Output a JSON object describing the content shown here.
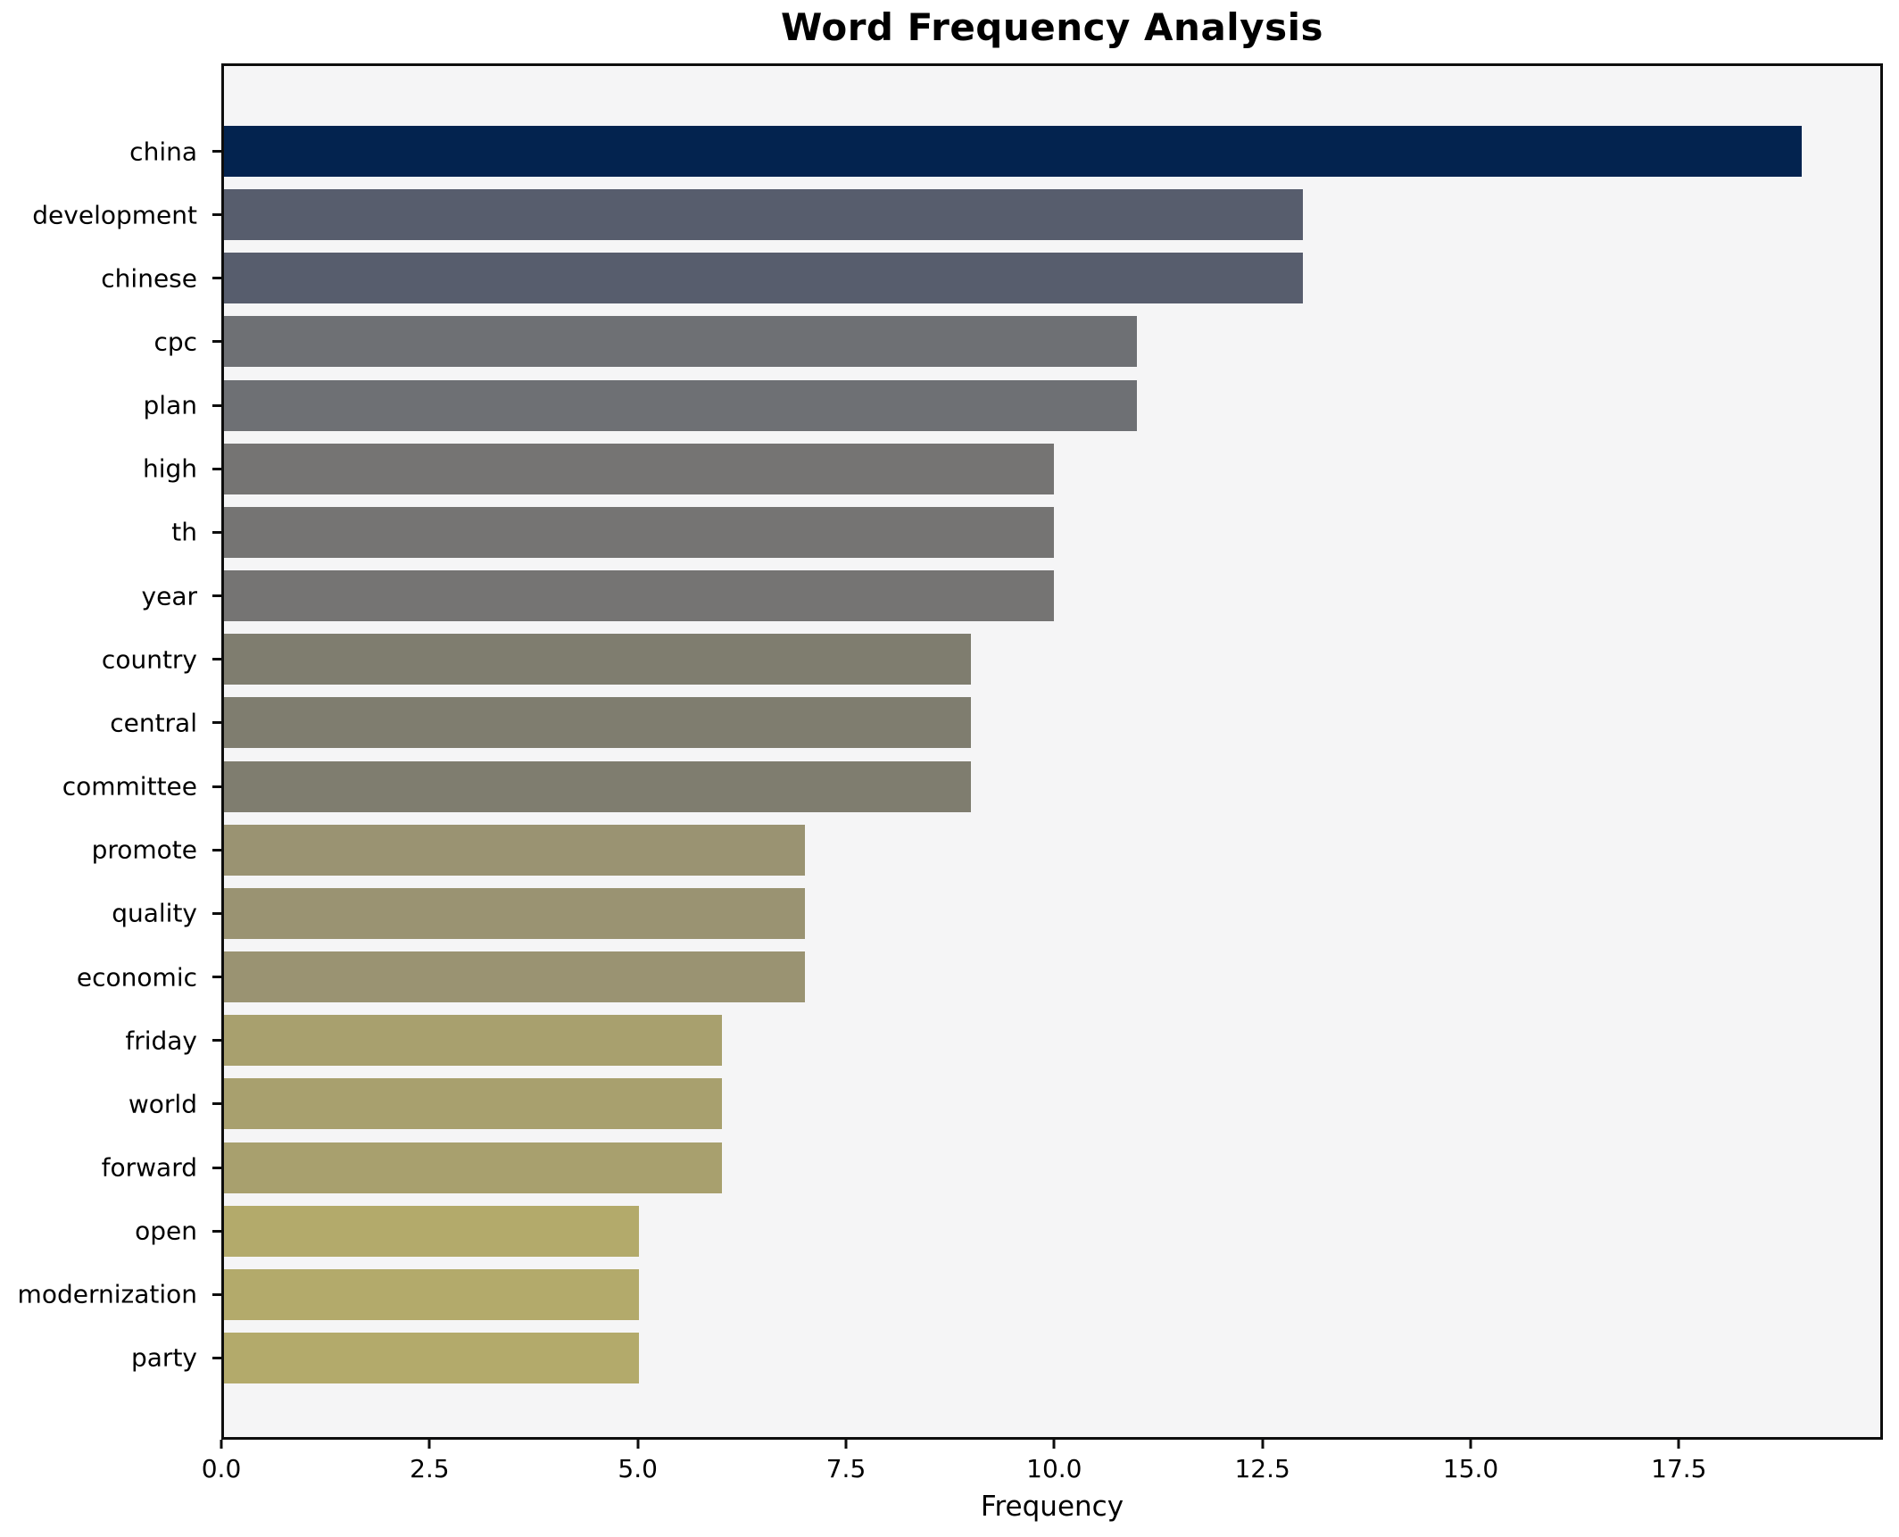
{
  "title": "Word Frequency Analysis",
  "chart_data": {
    "type": "bar",
    "orientation": "horizontal",
    "title": "Word Frequency Analysis",
    "xlabel": "Frequency",
    "ylabel": "",
    "xlim": [
      0,
      19.95
    ],
    "grid": false,
    "legend_position": "none",
    "plot_bg": "#f5f5f6",
    "figure_bg": "#ffffff",
    "spine_color": "#0d0d0d",
    "x_ticks": [
      0.0,
      2.5,
      5.0,
      7.5,
      10.0,
      12.5,
      15.0,
      17.5
    ],
    "x_tick_labels": [
      "0.0",
      "2.5",
      "5.0",
      "7.5",
      "10.0",
      "12.5",
      "15.0",
      "17.5"
    ],
    "categories": [
      "china",
      "development",
      "chinese",
      "cpc",
      "plan",
      "high",
      "th",
      "year",
      "country",
      "central",
      "committee",
      "promote",
      "quality",
      "economic",
      "friday",
      "world",
      "forward",
      "open",
      "modernization",
      "party"
    ],
    "values": [
      19,
      13,
      13,
      11,
      11,
      10,
      10,
      10,
      9,
      9,
      9,
      7,
      7,
      7,
      6,
      6,
      6,
      5,
      5,
      5
    ],
    "bar_colors": [
      "#03234f",
      "#575d6d",
      "#575d6d",
      "#6e7074",
      "#6e7074",
      "#757473",
      "#757473",
      "#757473",
      "#7f7d6f",
      "#7f7d6f",
      "#7f7d6f",
      "#9a9372",
      "#9a9372",
      "#9a9372",
      "#a8a06e",
      "#a8a06e",
      "#a8a06e",
      "#b3aa6b",
      "#b3aa6b",
      "#b3aa6b"
    ]
  }
}
